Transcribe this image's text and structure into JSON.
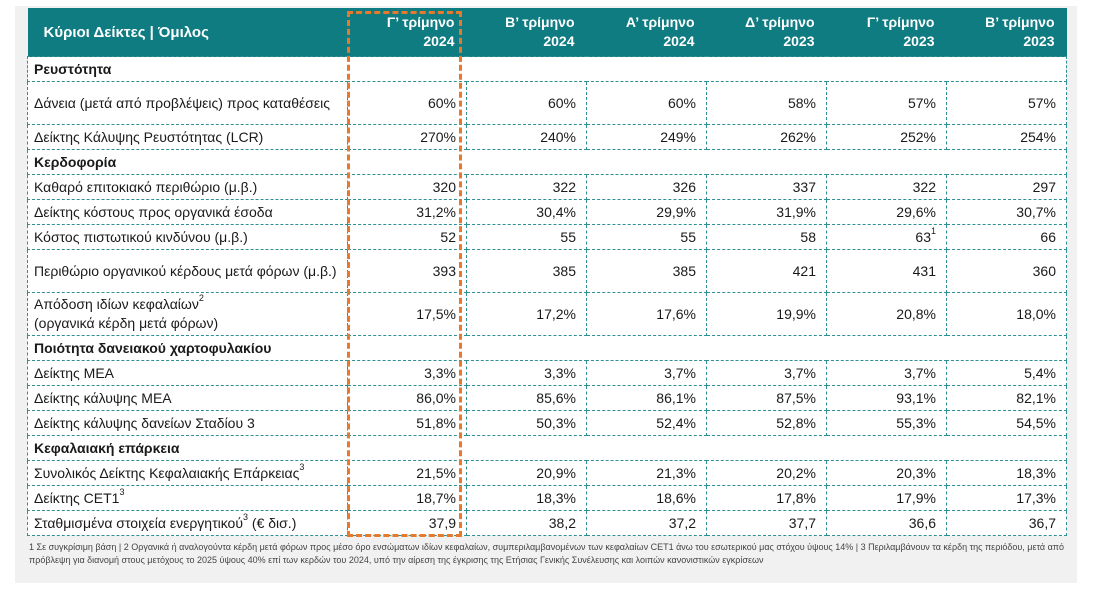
{
  "header": {
    "title": "Κύριοι Δείκτες | Όμιλος",
    "columns": [
      {
        "q": "Γ’ τρίμηνο",
        "y": "2024"
      },
      {
        "q": "Β’ τρίμηνο",
        "y": "2024"
      },
      {
        "q": "Α’ τρίμηνο",
        "y": "2024"
      },
      {
        "q": "Δ’ τρίμηνο",
        "y": "2023"
      },
      {
        "q": "Γ’ τρίμηνο",
        "y": "2023"
      },
      {
        "q": "Β’ τρίμηνο",
        "y": "2023"
      }
    ]
  },
  "sections": [
    {
      "title": "Ρευστότητα"
    },
    {
      "title": "Κερδοφορία"
    },
    {
      "title": "Ποιότητα δανειακού χαρτοφυλακίου"
    },
    {
      "title": "Κεφαλαιακή επάρκεια"
    }
  ],
  "rows": [
    {
      "label": "Δάνεια (μετά από προβλέψεις) προς καταθέσεις",
      "sup": "",
      "values": [
        "60%",
        "60%",
        "60%",
        "58%",
        "57%",
        "57%"
      ]
    },
    {
      "label": "Δείκτης Κάλυψης Ρευστότητας (LCR)",
      "sup": "",
      "values": [
        "270%",
        "240%",
        "249%",
        "262%",
        "252%",
        "254%"
      ]
    },
    {
      "label": "Καθαρό επιτοκιακό περιθώριο (μ.β.)",
      "sup": "",
      "values": [
        "320",
        "322",
        "326",
        "337",
        "322",
        "297"
      ]
    },
    {
      "label": "Δείκτης κόστους προς οργανικά έσοδα",
      "sup": "",
      "values": [
        "31,2%",
        "30,4%",
        "29,9%",
        "31,9%",
        "29,6%",
        "30,7%"
      ]
    },
    {
      "label": "Κόστος πιστωτικού κινδύνου (μ.β.)",
      "sup": "",
      "values": [
        "52",
        "55",
        "55",
        "58",
        "63",
        "66"
      ],
      "value_sup_q2_2023": "1"
    },
    {
      "label": "Περιθώριο οργανικού κέρδους μετά φόρων (μ.β.)",
      "sup": "",
      "values": [
        "393",
        "385",
        "385",
        "421",
        "431",
        "360"
      ]
    },
    {
      "label_line1": "Απόδοση ιδίων κεφαλαίων",
      "sup": "2",
      "label_line2": "(οργανικά κέρδη μετά φόρων)",
      "values": [
        "17,5%",
        "17,2%",
        "17,6%",
        "19,9%",
        "20,8%",
        "18,0%"
      ]
    },
    {
      "label": "Δείκτης ΜΕΑ",
      "sup": "",
      "values": [
        "3,3%",
        "3,3%",
        "3,7%",
        "3,7%",
        "3,7%",
        "5,4%"
      ]
    },
    {
      "label": "Δείκτης κάλυψης ΜΕΑ",
      "sup": "",
      "values": [
        "86,0%",
        "85,6%",
        "86,1%",
        "87,5%",
        "93,1%",
        "82,1%"
      ]
    },
    {
      "label": "Δείκτης κάλυψης δανείων Σταδίου 3",
      "sup": "",
      "values": [
        "51,8%",
        "50,3%",
        "52,4%",
        "52,8%",
        "55,3%",
        "54,5%"
      ]
    },
    {
      "label": "Συνολικός Δείκτης Κεφαλαιακής Επάρκειας",
      "sup": "3",
      "values": [
        "21,5%",
        "20,9%",
        "21,3%",
        "20,2%",
        "20,3%",
        "18,3%"
      ]
    },
    {
      "label": "Δείκτης CET1",
      "sup": "3",
      "values": [
        "18,7%",
        "18,3%",
        "18,6%",
        "17,8%",
        "17,9%",
        "17,3%"
      ]
    },
    {
      "label": "Σταθμισμένα στοιχεία ενεργητικού",
      "sup": "3",
      "label_suffix": " (€ δισ.)",
      "values": [
        "37,9",
        "38,2",
        "37,2",
        "37,7",
        "36,6",
        "36,7"
      ]
    }
  ],
  "footnote": "1 Σε συγκρίσιμη βάση | 2 Οργανικά ή αναλογούντα κέρδη μετά φόρων προς μέσο όρο ενσώματων ιδίων κεφαλαίων, συμπεριλαμβανομένων των κεφαλαίων CET1 άνω του εσωτερικού μας στόχου ύψους 14% | 3 Περιλαμβάνουν τα κέρδη της περιόδου, μετά από πρόβλεψη για διανομή στους μετόχους το 2025 ύψους 40% επί των κερδών του 2024, υπό την αίρεση της έγκρισης της Ετήσιας Γενικής Συνέλευσης και λοιπών κανονιστικών εγκρίσεων"
}
